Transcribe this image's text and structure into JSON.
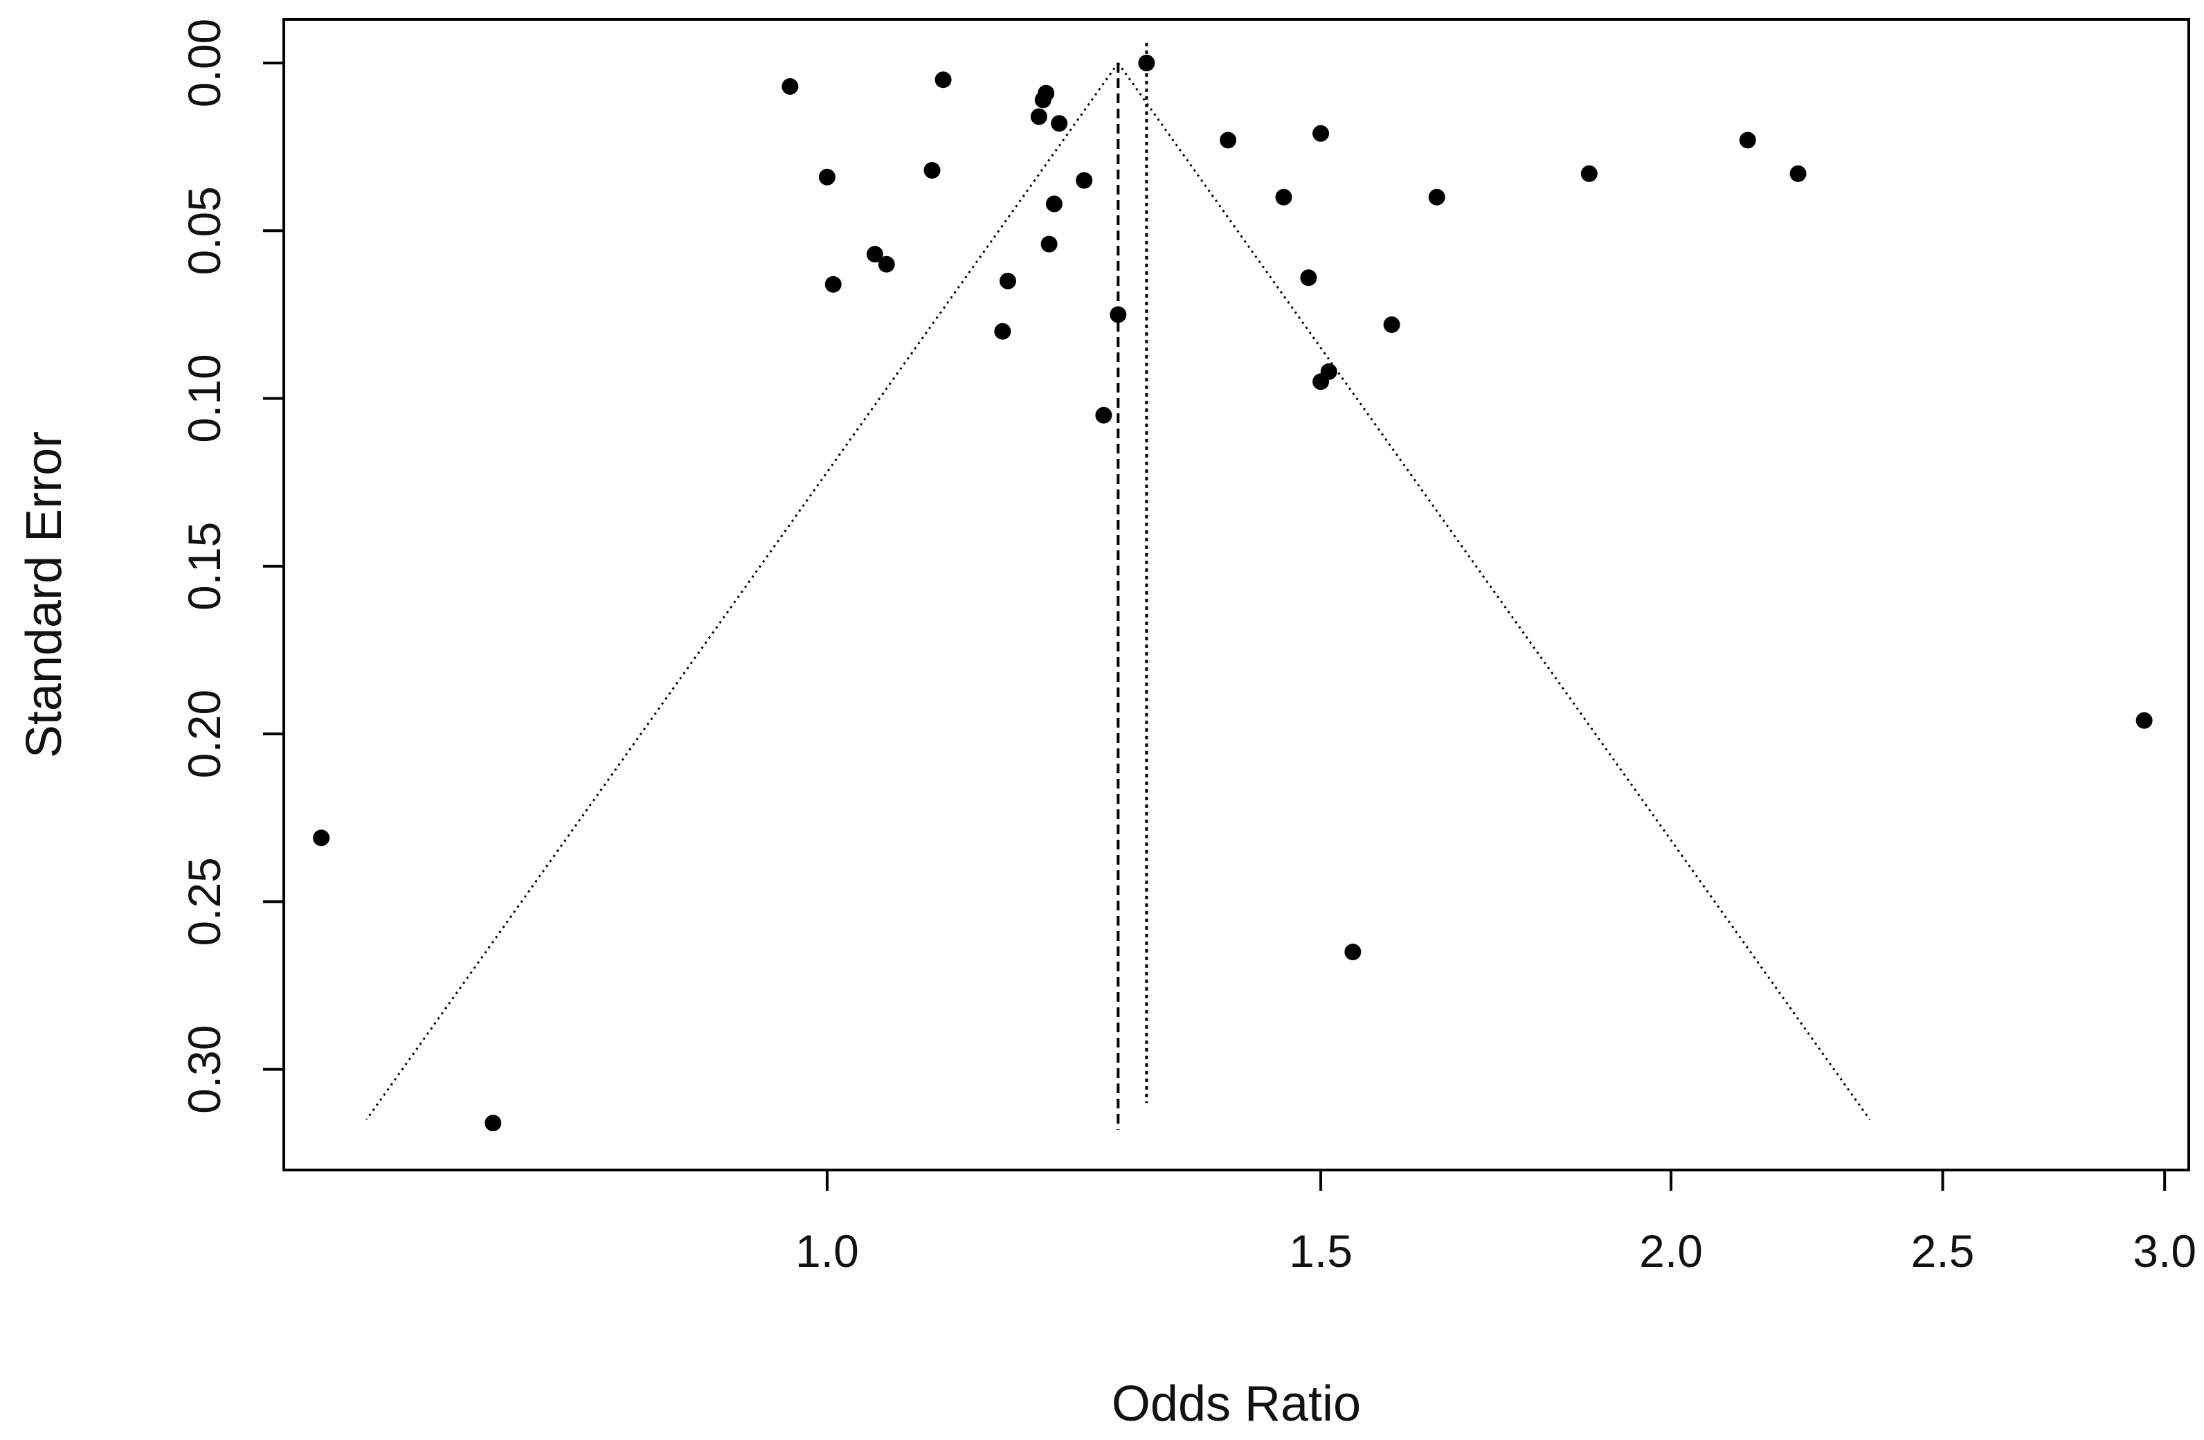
{
  "chart_data": {
    "type": "scatter",
    "subtype": "funnel plot",
    "title": "",
    "xlabel": "Odds Ratio",
    "ylabel": "Standard Error",
    "x_scale": "log",
    "x_ticks": [
      1.0,
      1.5,
      2.0,
      2.5,
      3.0
    ],
    "x_tick_labels": [
      "1.0",
      "1.5",
      "2.0",
      "2.5",
      "3.0"
    ],
    "xlim": [
      0.64,
      3.06
    ],
    "y_ticks": [
      0.0,
      0.05,
      0.1,
      0.15,
      0.2,
      0.25,
      0.3
    ],
    "y_tick_labels": [
      "0.00",
      "0.05",
      "0.10",
      "0.15",
      "0.20",
      "0.25",
      "0.30"
    ],
    "ylim": [
      0.33,
      -0.013
    ],
    "y_reversed": true,
    "grid": false,
    "legend": "none",
    "points": [
      {
        "x": 0.97,
        "y": 0.007
      },
      {
        "x": 1.1,
        "y": 0.005
      },
      {
        "x": 1.19,
        "y": 0.016
      },
      {
        "x": 1.194,
        "y": 0.011
      },
      {
        "x": 1.197,
        "y": 0.009
      },
      {
        "x": 1.21,
        "y": 0.018
      },
      {
        "x": 1.3,
        "y": 0.0
      },
      {
        "x": 1.0,
        "y": 0.034
      },
      {
        "x": 1.09,
        "y": 0.032
      },
      {
        "x": 1.235,
        "y": 0.035
      },
      {
        "x": 1.205,
        "y": 0.042
      },
      {
        "x": 1.2,
        "y": 0.054
      },
      {
        "x": 1.04,
        "y": 0.057
      },
      {
        "x": 1.05,
        "y": 0.06
      },
      {
        "x": 1.005,
        "y": 0.066
      },
      {
        "x": 1.16,
        "y": 0.065
      },
      {
        "x": 1.155,
        "y": 0.08
      },
      {
        "x": 1.27,
        "y": 0.075
      },
      {
        "x": 1.255,
        "y": 0.105
      },
      {
        "x": 1.39,
        "y": 0.023
      },
      {
        "x": 1.5,
        "y": 0.021
      },
      {
        "x": 1.455,
        "y": 0.04
      },
      {
        "x": 1.485,
        "y": 0.064
      },
      {
        "x": 1.65,
        "y": 0.04
      },
      {
        "x": 1.59,
        "y": 0.078
      },
      {
        "x": 1.5,
        "y": 0.095
      },
      {
        "x": 1.51,
        "y": 0.092
      },
      {
        "x": 1.87,
        "y": 0.033
      },
      {
        "x": 2.13,
        "y": 0.023
      },
      {
        "x": 2.22,
        "y": 0.033
      },
      {
        "x": 2.95,
        "y": 0.196
      },
      {
        "x": 0.66,
        "y": 0.231
      },
      {
        "x": 1.54,
        "y": 0.265
      },
      {
        "x": 0.76,
        "y": 0.316
      }
    ],
    "summary_estimate": 1.27,
    "fixed_line": 1.3,
    "funnel": {
      "apex_x": 1.27,
      "apex_y": 0.0,
      "se_max": 0.315,
      "z": 1.96
    }
  }
}
